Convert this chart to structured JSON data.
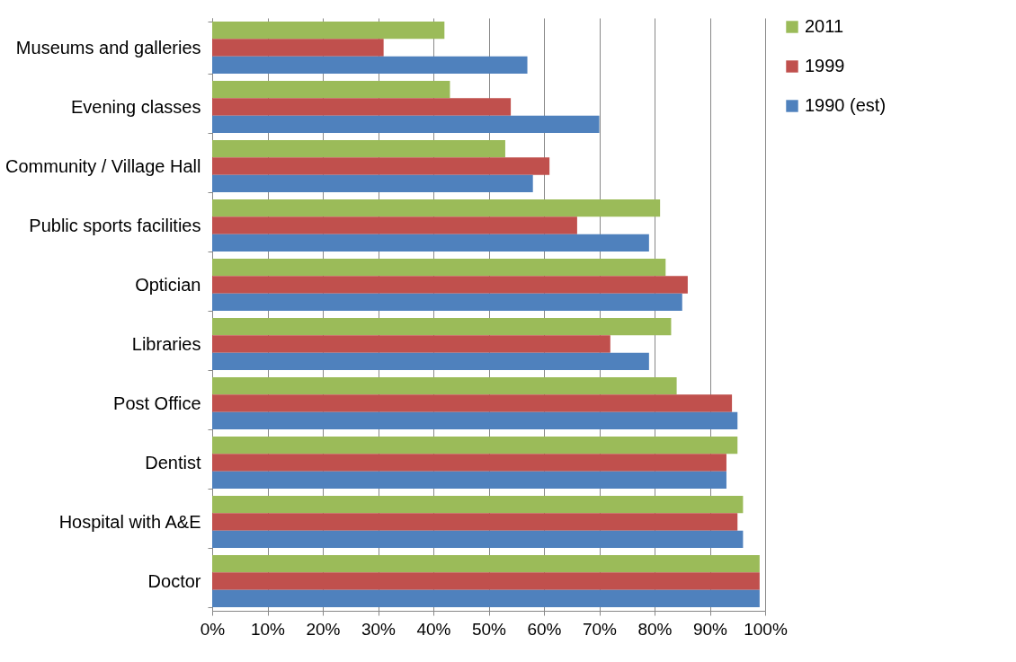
{
  "chart_data": {
    "type": "bar",
    "orientation": "horizontal",
    "categories": [
      "Museums and galleries",
      "Evening classes",
      "Community / Village Hall",
      "Public sports facilities",
      "Optician",
      "Libraries",
      "Post Office",
      "Dentist",
      "Hospital with A&E",
      "Doctor"
    ],
    "series": [
      {
        "name": "2011",
        "color": "#9bbb59",
        "values": [
          42,
          43,
          53,
          81,
          82,
          83,
          84,
          95,
          96,
          99
        ]
      },
      {
        "name": "1999",
        "color": "#c0504d",
        "values": [
          31,
          54,
          61,
          66,
          86,
          72,
          94,
          93,
          95,
          99
        ]
      },
      {
        "name": "1990 (est)",
        "color": "#4f81bd",
        "values": [
          57,
          70,
          58,
          79,
          85,
          79,
          95,
          93,
          96,
          99
        ]
      }
    ],
    "xlim": [
      0,
      100
    ],
    "xticks": [
      {
        "value": 0,
        "label": "0%"
      },
      {
        "value": 10,
        "label": "10%"
      },
      {
        "value": 20,
        "label": "20%"
      },
      {
        "value": 30,
        "label": "30%"
      },
      {
        "value": 40,
        "label": "40%"
      },
      {
        "value": 50,
        "label": "50%"
      },
      {
        "value": 60,
        "label": "60%"
      },
      {
        "value": 70,
        "label": "70%"
      },
      {
        "value": 80,
        "label": "80%"
      },
      {
        "value": 90,
        "label": "90%"
      },
      {
        "value": 100,
        "label": "100%"
      }
    ],
    "grid": "x",
    "legend": "right"
  }
}
